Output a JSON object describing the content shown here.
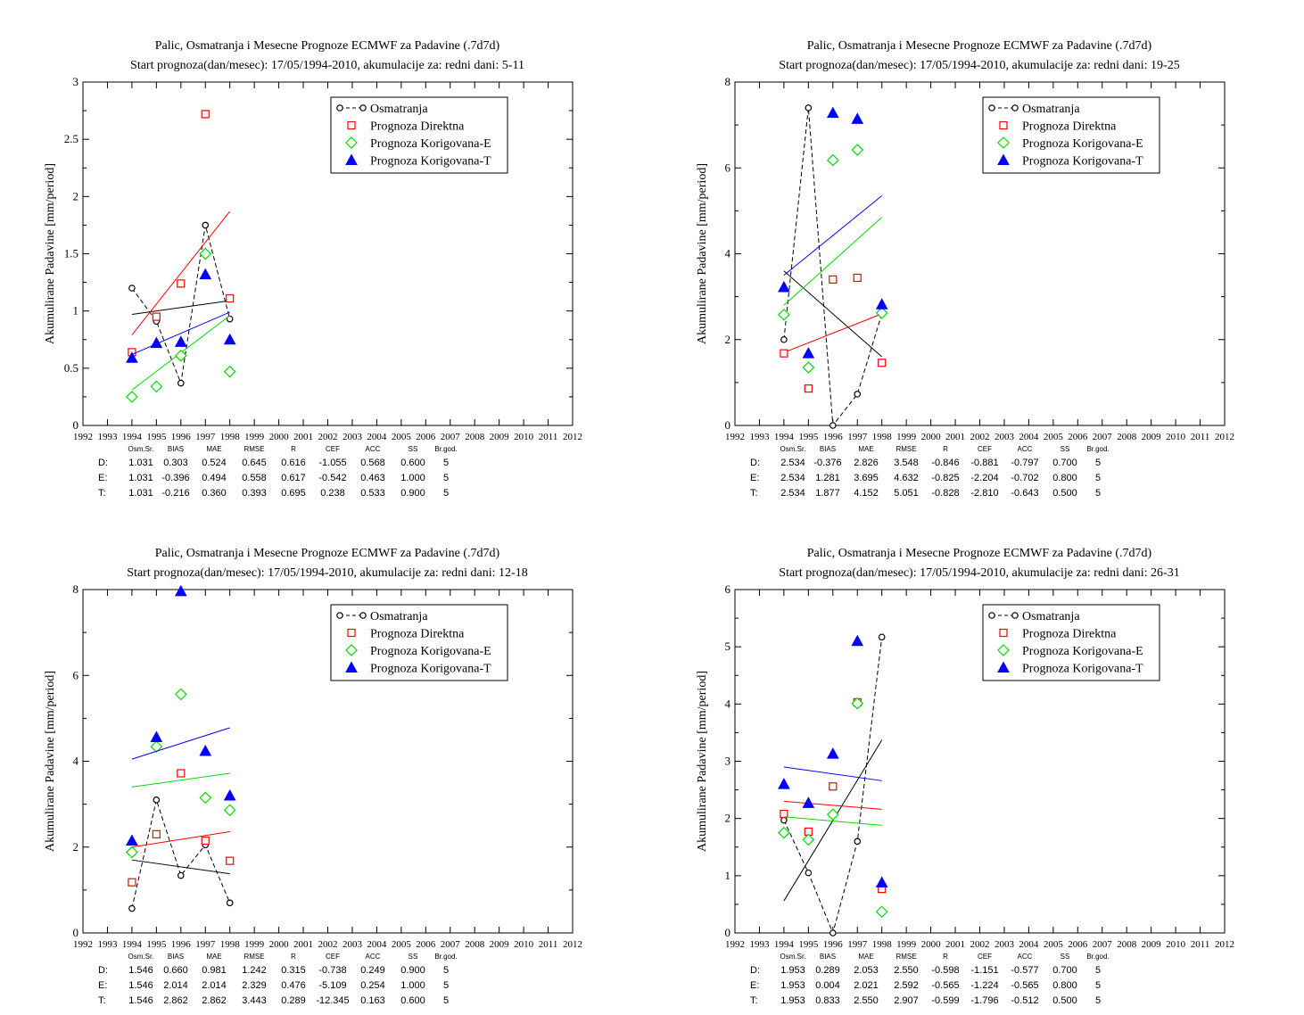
{
  "colors": {
    "obs": "#000000",
    "direct": "#ff0000",
    "corrE": "#00dd00",
    "corrT": "#0000ff"
  },
  "stats_header": [
    "Osm.Sr.",
    "BIAS",
    "MAE",
    "RMSE",
    "R",
    "CEF",
    "ACC",
    "SS",
    "Br.god."
  ],
  "stats_row_labels": [
    "D:",
    "E:",
    "T:"
  ],
  "legend": [
    "Osmatranja",
    "Prognoza Direktna",
    "Prognoza Korigovana-E",
    "Prognoza Korigovana-T"
  ],
  "chart_data": [
    {
      "type": "scatter",
      "title": "Palic, Osmatranja i Mesecne Prognoze ECMWF za Padavine (.7d7d)",
      "subtitle": "Start prognoza(dan/mesec): 17/05/1994-2010, akumulacije za: redni dani: 5-11",
      "ylabel": "Akumulirane Padavine [mm/period]",
      "xlabel": "",
      "xlim": [
        1992,
        2012
      ],
      "ylim": [
        0,
        3
      ],
      "yticks": [
        "0",
        "0.5",
        "1",
        "1.5",
        "2",
        "2.5",
        "3"
      ],
      "xticks": [
        "1992",
        "1993",
        "1994",
        "1995",
        "1996",
        "1997",
        "1998",
        "1999",
        "2000",
        "2001",
        "2002",
        "2003",
        "2004",
        "2005",
        "2006",
        "2007",
        "2008",
        "2009",
        "2010",
        "2011",
        "2012"
      ],
      "x": [
        1994,
        1995,
        1996,
        1997,
        1998
      ],
      "series": [
        {
          "name": "Osmatranja",
          "values": [
            1.2,
            0.91,
            0.37,
            1.75,
            0.93
          ],
          "trend": [
            0.97,
            1.09
          ]
        },
        {
          "name": "Prognoza Direktna",
          "values": [
            0.64,
            0.95,
            1.24,
            2.72,
            1.11
          ],
          "trend": [
            0.79,
            1.87
          ]
        },
        {
          "name": "Prognoza Korigovana-E",
          "values": [
            0.25,
            0.34,
            0.61,
            1.5,
            0.47
          ],
          "trend": [
            0.31,
            0.96
          ]
        },
        {
          "name": "Prognoza Korigovana-T",
          "values": [
            0.59,
            0.72,
            0.73,
            1.32,
            0.75
          ],
          "trend": [
            0.62,
            0.99
          ]
        }
      ],
      "stats": [
        [
          "1.031",
          "0.303",
          "0.524",
          "0.645",
          "0.616",
          "-1.055",
          "0.568",
          "0.600",
          "5"
        ],
        [
          "1.031",
          "-0.396",
          "0.494",
          "0.558",
          "0.617",
          "-0.542",
          "0.463",
          "1.000",
          "5"
        ],
        [
          "1.031",
          "-0.216",
          "0.360",
          "0.393",
          "0.695",
          "0.238",
          "0.533",
          "0.900",
          "5"
        ]
      ]
    },
    {
      "type": "scatter",
      "title": "Palic, Osmatranja i Mesecne Prognoze ECMWF za Padavine (.7d7d)",
      "subtitle": "Start prognoza(dan/mesec): 17/05/1994-2010, akumulacije za: redni dani: 19-25",
      "ylabel": "Akumulirane Padavine [mm/period]",
      "xlabel": "",
      "xlim": [
        1992,
        2012
      ],
      "ylim": [
        0,
        8
      ],
      "yticks": [
        "0",
        "2",
        "4",
        "6",
        "8"
      ],
      "xticks": [
        "1992",
        "1993",
        "1994",
        "1995",
        "1996",
        "1997",
        "1998",
        "1999",
        "2000",
        "2001",
        "2002",
        "2003",
        "2004",
        "2005",
        "2006",
        "2007",
        "2008",
        "2009",
        "2010",
        "2011",
        "2012"
      ],
      "x": [
        1994,
        1995,
        1996,
        1997,
        1998
      ],
      "series": [
        {
          "name": "Osmatranja",
          "values": [
            2.0,
            7.4,
            0.0,
            0.73,
            2.6
          ],
          "trend": [
            3.6,
            1.6
          ]
        },
        {
          "name": "Prognoza Direktna",
          "values": [
            1.68,
            0.86,
            3.4,
            3.44,
            1.46
          ],
          "trend": [
            1.7,
            2.6
          ]
        },
        {
          "name": "Prognoza Korigovana-E",
          "values": [
            2.58,
            1.35,
            6.18,
            6.42,
            2.62
          ],
          "trend": [
            2.8,
            4.85
          ]
        },
        {
          "name": "Prognoza Korigovana-T",
          "values": [
            3.22,
            1.68,
            7.28,
            7.14,
            2.82
          ],
          "trend": [
            3.5,
            5.35
          ]
        }
      ],
      "stats": [
        [
          "2.534",
          "-0.376",
          "2.826",
          "3.548",
          "-0.846",
          "-0.881",
          "-0.797",
          "0.700",
          "5"
        ],
        [
          "2.534",
          "1.281",
          "3.695",
          "4.632",
          "-0.825",
          "-2.204",
          "-0.702",
          "0.800",
          "5"
        ],
        [
          "2.534",
          "1.877",
          "4.152",
          "5.051",
          "-0.828",
          "-2.810",
          "-0.643",
          "0.500",
          "5"
        ]
      ]
    },
    {
      "type": "scatter",
      "title": "Palic, Osmatranja i Mesecne Prognoze ECMWF za Padavine (.7d7d)",
      "subtitle": "Start prognoza(dan/mesec): 17/05/1994-2010, akumulacije za: redni dani: 12-18",
      "ylabel": "Akumulirane Padavine [mm/period]",
      "xlabel": "",
      "xlim": [
        1992,
        2012
      ],
      "ylim": [
        0,
        8
      ],
      "yticks": [
        "0",
        "2",
        "4",
        "6",
        "8"
      ],
      "xticks": [
        "1992",
        "1993",
        "1994",
        "1995",
        "1996",
        "1997",
        "1998",
        "1999",
        "2000",
        "2001",
        "2002",
        "2003",
        "2004",
        "2005",
        "2006",
        "2007",
        "2008",
        "2009",
        "2010",
        "2011",
        "2012"
      ],
      "x": [
        1994,
        1995,
        1996,
        1997,
        1998
      ],
      "series": [
        {
          "name": "Osmatranja",
          "values": [
            0.57,
            3.1,
            1.34,
            2.05,
            0.7
          ],
          "trend": [
            1.7,
            1.38
          ]
        },
        {
          "name": "Prognoza Direktna",
          "values": [
            1.18,
            2.3,
            3.72,
            2.15,
            1.68
          ],
          "trend": [
            2.0,
            2.36
          ]
        },
        {
          "name": "Prognoza Korigovana-E",
          "values": [
            1.88,
            4.34,
            5.56,
            3.15,
            2.86
          ],
          "trend": [
            3.4,
            3.72
          ]
        },
        {
          "name": "Prognoza Korigovana-T",
          "values": [
            2.15,
            4.56,
            7.96,
            4.24,
            3.2
          ],
          "trend": [
            4.05,
            4.78
          ]
        }
      ],
      "stats": [
        [
          "1.546",
          "0.660",
          "0.981",
          "1.242",
          "0.315",
          "-0.738",
          "0.249",
          "0.900",
          "5"
        ],
        [
          "1.546",
          "2.014",
          "2.014",
          "2.329",
          "0.476",
          "-5.109",
          "0.254",
          "1.000",
          "5"
        ],
        [
          "1.546",
          "2.862",
          "2.862",
          "3.443",
          "0.289",
          "-12.345",
          "0.163",
          "0.600",
          "5"
        ]
      ]
    },
    {
      "type": "scatter",
      "title": "Palic, Osmatranja i Mesecne Prognoze ECMWF za Padavine (.7d7d)",
      "subtitle": "Start prognoza(dan/mesec): 17/05/1994-2010, akumulacije za: redni dani: 26-31",
      "ylabel": "Akumulirane Padavine [mm/period]",
      "xlabel": "",
      "xlim": [
        1992,
        2012
      ],
      "ylim": [
        0,
        6
      ],
      "yticks": [
        "0",
        "1",
        "2",
        "3",
        "4",
        "5",
        "6"
      ],
      "xticks": [
        "1992",
        "1993",
        "1994",
        "1995",
        "1996",
        "1997",
        "1998",
        "1999",
        "2000",
        "2001",
        "2002",
        "2003",
        "2004",
        "2005",
        "2006",
        "2007",
        "2008",
        "2009",
        "2010",
        "2011",
        "2012"
      ],
      "x": [
        1994,
        1995,
        1996,
        1997,
        1998
      ],
      "series": [
        {
          "name": "Osmatranja",
          "values": [
            1.97,
            1.05,
            0.0,
            1.6,
            5.17
          ],
          "trend": [
            0.56,
            3.37
          ]
        },
        {
          "name": "Prognoza Direktna",
          "values": [
            2.08,
            1.77,
            2.56,
            4.03,
            0.77
          ],
          "trend": [
            2.3,
            2.16
          ]
        },
        {
          "name": "Prognoza Korigovana-E",
          "values": [
            1.75,
            1.63,
            2.07,
            4.01,
            0.37
          ],
          "trend": [
            2.03,
            1.88
          ]
        },
        {
          "name": "Prognoza Korigovana-T",
          "values": [
            2.6,
            2.27,
            3.13,
            5.1,
            0.88
          ],
          "trend": [
            2.9,
            2.66
          ]
        }
      ],
      "stats": [
        [
          "1.953",
          "0.289",
          "2.053",
          "2.550",
          "-0.598",
          "-1.151",
          "-0.577",
          "0.700",
          "5"
        ],
        [
          "1.953",
          "0.004",
          "2.021",
          "2.592",
          "-0.565",
          "-1.224",
          "-0.565",
          "0.800",
          "5"
        ],
        [
          "1.953",
          "0.833",
          "2.550",
          "2.907",
          "-0.599",
          "-1.796",
          "-0.512",
          "0.500",
          "5"
        ]
      ]
    }
  ]
}
